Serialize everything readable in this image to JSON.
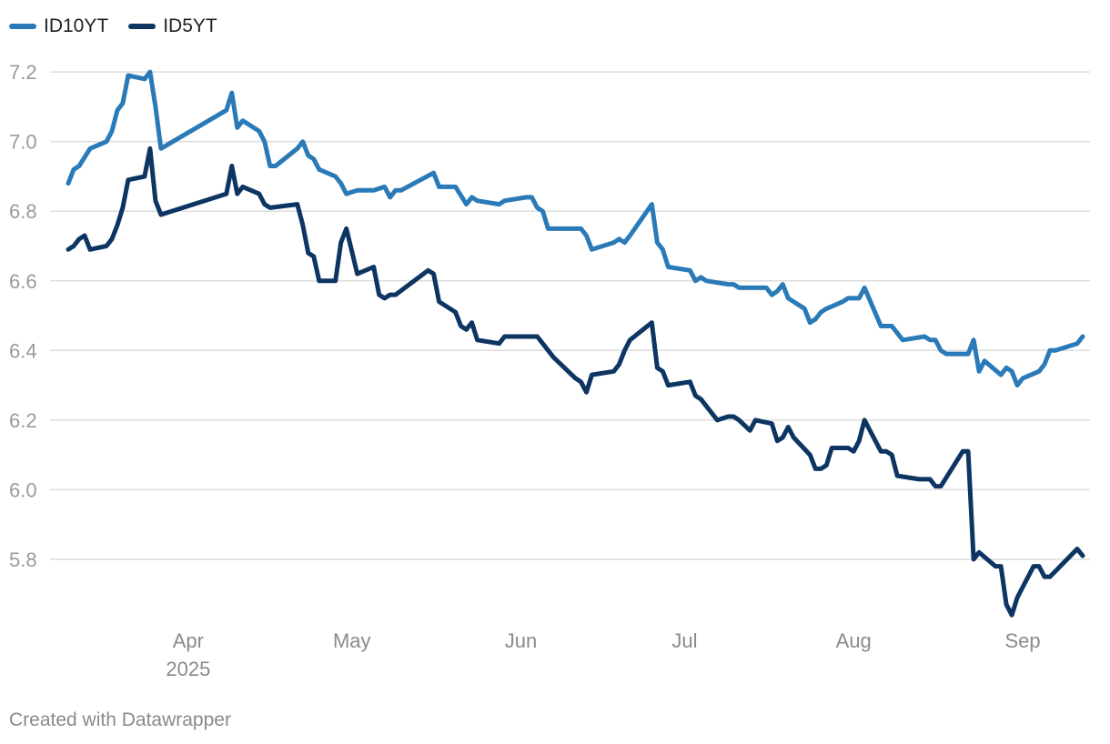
{
  "chart_data": {
    "type": "line",
    "legend_placement": "top-left",
    "grid": true,
    "y_axis": {
      "range": [
        5.63,
        7.25
      ],
      "ticks": [
        5.8,
        6.0,
        6.2,
        6.4,
        6.6,
        6.8,
        7.0,
        7.2
      ],
      "tick_labels": [
        "5.8",
        "6.0",
        "6.2",
        "6.4",
        "6.6",
        "6.8",
        "7.0",
        "7.2"
      ]
    },
    "x_axis": {
      "type": "date",
      "range": [
        "2025-03-10",
        "2025-09-12"
      ],
      "ticks": [
        {
          "date": "2025-04-01",
          "label": "Apr",
          "sublabel": "2025"
        },
        {
          "date": "2025-05-01",
          "label": "May",
          "sublabel": ""
        },
        {
          "date": "2025-06-01",
          "label": "Jun",
          "sublabel": ""
        },
        {
          "date": "2025-07-01",
          "label": "Jul",
          "sublabel": ""
        },
        {
          "date": "2025-08-01",
          "label": "Aug",
          "sublabel": ""
        },
        {
          "date": "2025-09-01",
          "label": "Sep",
          "sublabel": ""
        }
      ]
    },
    "series": [
      {
        "name": "ID10YT",
        "color": "#2a7ab8",
        "points": [
          [
            "2025-03-10",
            6.88
          ],
          [
            "2025-03-11",
            6.92
          ],
          [
            "2025-03-12",
            6.93
          ],
          [
            "2025-03-14",
            6.98
          ],
          [
            "2025-03-17",
            7.0
          ],
          [
            "2025-03-18",
            7.03
          ],
          [
            "2025-03-19",
            7.09
          ],
          [
            "2025-03-20",
            7.11
          ],
          [
            "2025-03-21",
            7.19
          ],
          [
            "2025-03-24",
            7.18
          ],
          [
            "2025-03-25",
            7.2
          ],
          [
            "2025-03-26",
            7.1
          ],
          [
            "2025-03-27",
            6.98
          ],
          [
            "2025-04-08",
            7.09
          ],
          [
            "2025-04-09",
            7.14
          ],
          [
            "2025-04-10",
            7.04
          ],
          [
            "2025-04-11",
            7.06
          ],
          [
            "2025-04-14",
            7.03
          ],
          [
            "2025-04-15",
            7.0
          ],
          [
            "2025-04-16",
            6.93
          ],
          [
            "2025-04-17",
            6.93
          ],
          [
            "2025-04-21",
            6.98
          ],
          [
            "2025-04-22",
            7.0
          ],
          [
            "2025-04-23",
            6.96
          ],
          [
            "2025-04-24",
            6.95
          ],
          [
            "2025-04-25",
            6.92
          ],
          [
            "2025-04-28",
            6.9
          ],
          [
            "2025-04-29",
            6.88
          ],
          [
            "2025-04-30",
            6.85
          ],
          [
            "2025-05-02",
            6.86
          ],
          [
            "2025-05-05",
            6.86
          ],
          [
            "2025-05-07",
            6.87
          ],
          [
            "2025-05-08",
            6.84
          ],
          [
            "2025-05-09",
            6.86
          ],
          [
            "2025-05-10",
            6.86
          ],
          [
            "2025-05-16",
            6.91
          ],
          [
            "2025-05-17",
            6.87
          ],
          [
            "2025-05-20",
            6.87
          ],
          [
            "2025-05-22",
            6.82
          ],
          [
            "2025-05-23",
            6.84
          ],
          [
            "2025-05-24",
            6.83
          ],
          [
            "2025-05-28",
            6.82
          ],
          [
            "2025-05-29",
            6.83
          ],
          [
            "2025-06-02",
            6.84
          ],
          [
            "2025-06-03",
            6.84
          ],
          [
            "2025-06-04",
            6.81
          ],
          [
            "2025-06-05",
            6.8
          ],
          [
            "2025-06-06",
            6.75
          ],
          [
            "2025-06-10",
            6.75
          ],
          [
            "2025-06-12",
            6.75
          ],
          [
            "2025-06-13",
            6.73
          ],
          [
            "2025-06-14",
            6.69
          ],
          [
            "2025-06-18",
            6.71
          ],
          [
            "2025-06-19",
            6.72
          ],
          [
            "2025-06-20",
            6.71
          ],
          [
            "2025-06-21",
            6.73
          ],
          [
            "2025-06-25",
            6.82
          ],
          [
            "2025-06-26",
            6.71
          ],
          [
            "2025-06-27",
            6.69
          ],
          [
            "2025-06-28",
            6.64
          ],
          [
            "2025-07-02",
            6.63
          ],
          [
            "2025-07-03",
            6.6
          ],
          [
            "2025-07-04",
            6.61
          ],
          [
            "2025-07-05",
            6.6
          ],
          [
            "2025-07-09",
            6.59
          ],
          [
            "2025-07-10",
            6.59
          ],
          [
            "2025-07-11",
            6.58
          ],
          [
            "2025-07-12",
            6.58
          ],
          [
            "2025-07-16",
            6.58
          ],
          [
            "2025-07-17",
            6.56
          ],
          [
            "2025-07-18",
            6.57
          ],
          [
            "2025-07-19",
            6.59
          ],
          [
            "2025-07-20",
            6.55
          ],
          [
            "2025-07-23",
            6.52
          ],
          [
            "2025-07-24",
            6.48
          ],
          [
            "2025-07-25",
            6.49
          ],
          [
            "2025-07-26",
            6.51
          ],
          [
            "2025-07-27",
            6.52
          ],
          [
            "2025-07-30",
            6.54
          ],
          [
            "2025-07-31",
            6.55
          ],
          [
            "2025-08-02",
            6.55
          ],
          [
            "2025-08-03",
            6.58
          ],
          [
            "2025-08-06",
            6.47
          ],
          [
            "2025-08-08",
            6.47
          ],
          [
            "2025-08-10",
            6.43
          ],
          [
            "2025-08-14",
            6.44
          ],
          [
            "2025-08-15",
            6.43
          ],
          [
            "2025-08-16",
            6.43
          ],
          [
            "2025-08-17",
            6.4
          ],
          [
            "2025-08-18",
            6.39
          ],
          [
            "2025-08-22",
            6.39
          ],
          [
            "2025-08-23",
            6.43
          ],
          [
            "2025-08-24",
            6.34
          ],
          [
            "2025-08-25",
            6.37
          ],
          [
            "2025-08-28",
            6.33
          ],
          [
            "2025-08-29",
            6.35
          ],
          [
            "2025-08-30",
            6.34
          ],
          [
            "2025-08-31",
            6.3
          ],
          [
            "2025-09-01",
            6.32
          ],
          [
            "2025-09-04",
            6.34
          ],
          [
            "2025-09-05",
            6.36
          ],
          [
            "2025-09-06",
            6.4
          ],
          [
            "2025-09-07",
            6.4
          ],
          [
            "2025-09-11",
            6.42
          ],
          [
            "2025-09-12",
            6.44
          ]
        ]
      },
      {
        "name": "ID5YT",
        "color": "#0d3562",
        "points": [
          [
            "2025-03-10",
            6.69
          ],
          [
            "2025-03-11",
            6.7
          ],
          [
            "2025-03-12",
            6.72
          ],
          [
            "2025-03-13",
            6.73
          ],
          [
            "2025-03-14",
            6.69
          ],
          [
            "2025-03-17",
            6.7
          ],
          [
            "2025-03-18",
            6.72
          ],
          [
            "2025-03-19",
            6.76
          ],
          [
            "2025-03-20",
            6.81
          ],
          [
            "2025-03-21",
            6.89
          ],
          [
            "2025-03-24",
            6.9
          ],
          [
            "2025-03-25",
            6.98
          ],
          [
            "2025-03-26",
            6.83
          ],
          [
            "2025-03-27",
            6.79
          ],
          [
            "2025-04-08",
            6.85
          ],
          [
            "2025-04-09",
            6.93
          ],
          [
            "2025-04-10",
            6.85
          ],
          [
            "2025-04-11",
            6.87
          ],
          [
            "2025-04-14",
            6.85
          ],
          [
            "2025-04-15",
            6.82
          ],
          [
            "2025-04-16",
            6.81
          ],
          [
            "2025-04-21",
            6.82
          ],
          [
            "2025-04-22",
            6.76
          ],
          [
            "2025-04-23",
            6.68
          ],
          [
            "2025-04-24",
            6.67
          ],
          [
            "2025-04-25",
            6.6
          ],
          [
            "2025-04-28",
            6.6
          ],
          [
            "2025-04-29",
            6.71
          ],
          [
            "2025-04-30",
            6.75
          ],
          [
            "2025-05-02",
            6.62
          ],
          [
            "2025-05-05",
            6.64
          ],
          [
            "2025-05-06",
            6.56
          ],
          [
            "2025-05-07",
            6.55
          ],
          [
            "2025-05-08",
            6.56
          ],
          [
            "2025-05-09",
            6.56
          ],
          [
            "2025-05-15",
            6.63
          ],
          [
            "2025-05-16",
            6.62
          ],
          [
            "2025-05-17",
            6.54
          ],
          [
            "2025-05-20",
            6.51
          ],
          [
            "2025-05-21",
            6.47
          ],
          [
            "2025-05-22",
            6.46
          ],
          [
            "2025-05-23",
            6.48
          ],
          [
            "2025-05-24",
            6.43
          ],
          [
            "2025-05-28",
            6.42
          ],
          [
            "2025-05-29",
            6.44
          ],
          [
            "2025-06-04",
            6.44
          ],
          [
            "2025-06-05",
            6.42
          ],
          [
            "2025-06-06",
            6.4
          ],
          [
            "2025-06-07",
            6.38
          ],
          [
            "2025-06-11",
            6.32
          ],
          [
            "2025-06-12",
            6.31
          ],
          [
            "2025-06-13",
            6.28
          ],
          [
            "2025-06-14",
            6.33
          ],
          [
            "2025-06-18",
            6.34
          ],
          [
            "2025-06-19",
            6.36
          ],
          [
            "2025-06-20",
            6.4
          ],
          [
            "2025-06-21",
            6.43
          ],
          [
            "2025-06-25",
            6.48
          ],
          [
            "2025-06-26",
            6.35
          ],
          [
            "2025-06-27",
            6.34
          ],
          [
            "2025-06-28",
            6.3
          ],
          [
            "2025-07-02",
            6.31
          ],
          [
            "2025-07-03",
            6.27
          ],
          [
            "2025-07-04",
            6.26
          ],
          [
            "2025-07-07",
            6.2
          ],
          [
            "2025-07-09",
            6.21
          ],
          [
            "2025-07-10",
            6.21
          ],
          [
            "2025-07-11",
            6.2
          ],
          [
            "2025-07-13",
            6.17
          ],
          [
            "2025-07-14",
            6.2
          ],
          [
            "2025-07-17",
            6.19
          ],
          [
            "2025-07-18",
            6.14
          ],
          [
            "2025-07-19",
            6.15
          ],
          [
            "2025-07-20",
            6.18
          ],
          [
            "2025-07-21",
            6.15
          ],
          [
            "2025-07-24",
            6.1
          ],
          [
            "2025-07-25",
            6.06
          ],
          [
            "2025-07-26",
            6.06
          ],
          [
            "2025-07-27",
            6.07
          ],
          [
            "2025-07-28",
            6.12
          ],
          [
            "2025-07-31",
            6.12
          ],
          [
            "2025-08-01",
            6.11
          ],
          [
            "2025-08-02",
            6.14
          ],
          [
            "2025-08-03",
            6.2
          ],
          [
            "2025-08-06",
            6.11
          ],
          [
            "2025-08-07",
            6.11
          ],
          [
            "2025-08-08",
            6.1
          ],
          [
            "2025-08-09",
            6.04
          ],
          [
            "2025-08-13",
            6.03
          ],
          [
            "2025-08-14",
            6.03
          ],
          [
            "2025-08-15",
            6.03
          ],
          [
            "2025-08-16",
            6.01
          ],
          [
            "2025-08-17",
            6.01
          ],
          [
            "2025-08-21",
            6.11
          ],
          [
            "2025-08-22",
            6.11
          ],
          [
            "2025-08-23",
            5.8
          ],
          [
            "2025-08-24",
            5.82
          ],
          [
            "2025-08-27",
            5.78
          ],
          [
            "2025-08-28",
            5.78
          ],
          [
            "2025-08-29",
            5.67
          ],
          [
            "2025-08-30",
            5.64
          ],
          [
            "2025-08-31",
            5.69
          ],
          [
            "2025-09-03",
            5.78
          ],
          [
            "2025-09-04",
            5.78
          ],
          [
            "2025-09-05",
            5.75
          ],
          [
            "2025-09-06",
            5.75
          ],
          [
            "2025-09-11",
            5.83
          ],
          [
            "2025-09-12",
            5.81
          ]
        ]
      }
    ]
  },
  "footer": {
    "credit": "Created with Datawrapper"
  }
}
